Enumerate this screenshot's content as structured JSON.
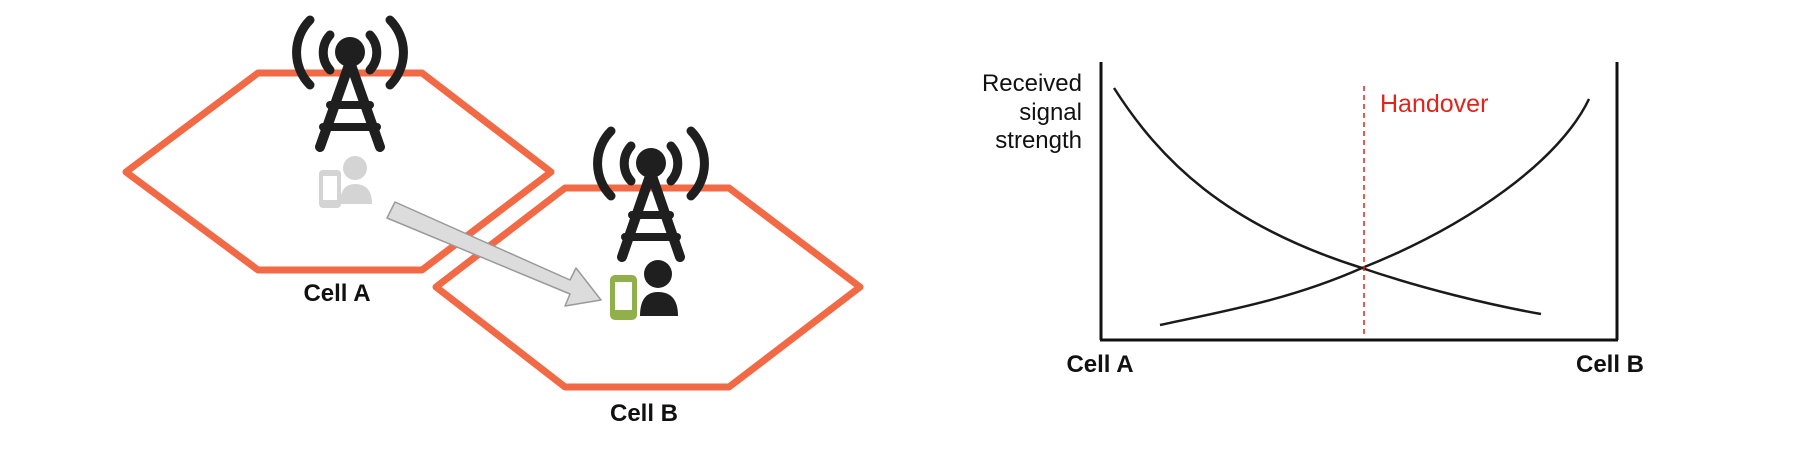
{
  "diagram": {
    "cell_a_label": "Cell A",
    "cell_b_label": "Cell B",
    "colors": {
      "hexagon": "#f26a45",
      "tower": "#1f1f1f",
      "ghost_user": "#d4d4d4",
      "phone_active": "#8fb04a",
      "arrow_fill": "#dcdcdc",
      "arrow_stroke": "#9a9a9a"
    }
  },
  "chart": {
    "ylabel_line1": "Received",
    "ylabel_line2": "signal",
    "ylabel_line3": "strength",
    "x_start_label": "Cell A",
    "x_end_label": "Cell B",
    "handover_label": "Handover",
    "handover_color": "#e0241b"
  }
}
